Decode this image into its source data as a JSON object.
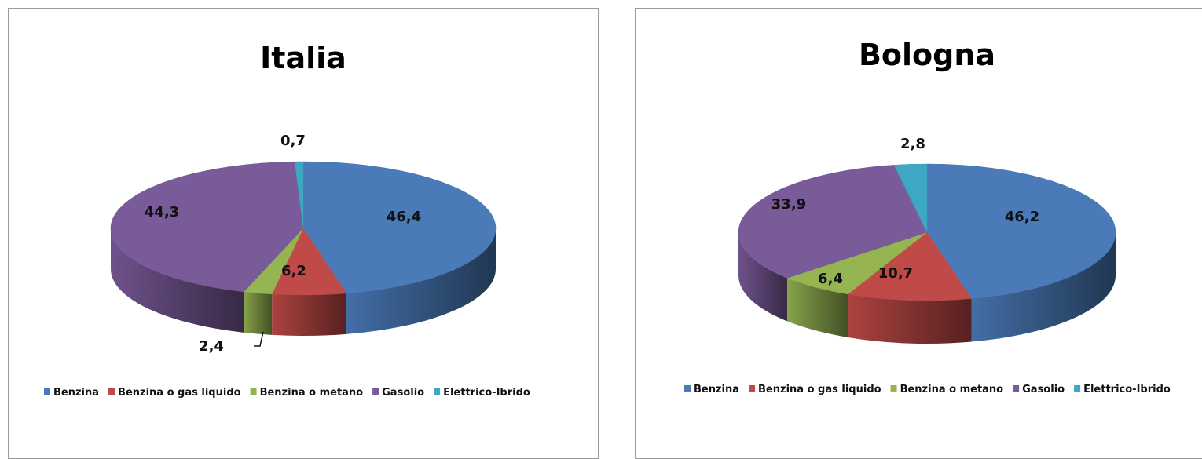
{
  "chart_data": [
    {
      "type": "pie",
      "title": "Italia",
      "categories": [
        "Benzina",
        "Benzina o gas liquido",
        "Benzina o metano",
        "Gasolio",
        "Elettrico-Ibrido"
      ],
      "values": [
        46.4,
        6.2,
        2.4,
        44.3,
        0.7
      ],
      "data_labels": [
        "46,4",
        "6,2",
        "2,4",
        "44,3",
        "0,7"
      ],
      "colors": [
        "#4a7ab8",
        "#bf4a47",
        "#95b452",
        "#7a5b9a",
        "#3ea7c3"
      ],
      "style": "3d",
      "legend": "bottom"
    },
    {
      "type": "pie",
      "title": "Bologna",
      "categories": [
        "Benzina",
        "Benzina o gas liquido",
        "Benzina o metano",
        "Gasolio",
        "Elettrico-Ibrido"
      ],
      "values": [
        46.2,
        10.7,
        6.4,
        33.9,
        2.8
      ],
      "data_labels": [
        "46,2",
        "10,7",
        "6,4",
        "33,9",
        "2,8"
      ],
      "colors": [
        "#4a7ab8",
        "#bf4a47",
        "#95b452",
        "#7a5b9a",
        "#3ea7c3"
      ],
      "style": "3d",
      "legend": "bottom"
    }
  ]
}
